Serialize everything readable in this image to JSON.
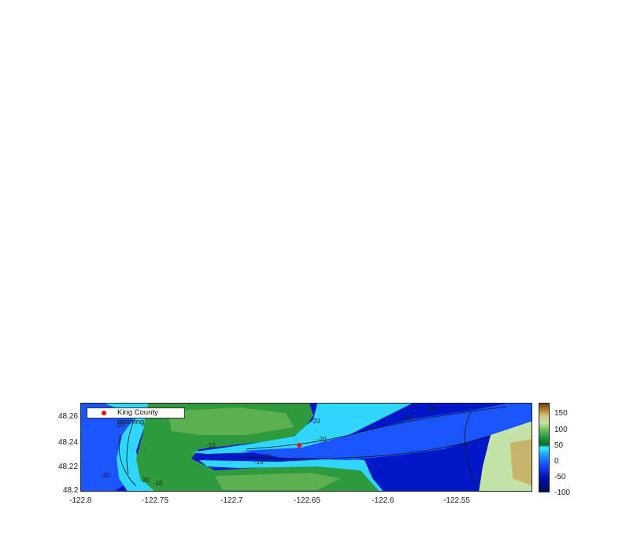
{
  "figure": {
    "legend": {
      "label": "King County mooring",
      "marker_color": "#ee1111"
    },
    "x_ticks": [
      "-122.8",
      "-122.75",
      "-122.7",
      "-122.65",
      "-122.6",
      "-122.55"
    ],
    "y_ticks": [
      "48.26",
      "48.24",
      "48.22",
      "48.2"
    ],
    "colorbar": {
      "ticks": [
        "150",
        "100",
        "50",
        "0",
        "-50",
        "-100"
      ],
      "range": [
        -100,
        180
      ],
      "colors": [
        "#000a5a",
        "#0012b4",
        "#1d45ff",
        "#1aa0ff",
        "#35f0ff",
        "#0a6a2c",
        "#1f9a3f",
        "#6cbf5a",
        "#c4e3a6",
        "#d6c37a",
        "#a8762a",
        "#6a420c"
      ]
    },
    "contour_labels": [
      "-10",
      "-20",
      "-30",
      "-10",
      "-20",
      "-30",
      "-20",
      "-10",
      "-30",
      "-20",
      "-10"
    ],
    "mooring": {
      "lon": -122.656,
      "lat": 48.238
    },
    "colors": {
      "deep_water": "#0018c8",
      "mid_water": "#1a55ff",
      "shallow_water": "#2fd7ff",
      "land_low": "#2f9a3d",
      "land_mid": "#5cb050",
      "land_high": "#c5b46a"
    }
  }
}
